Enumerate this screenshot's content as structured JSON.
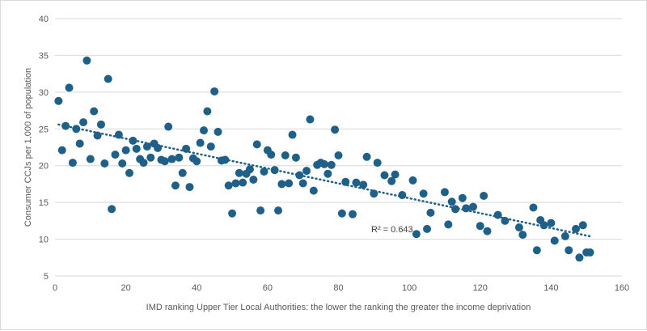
{
  "chart_data": {
    "type": "scatter",
    "title": "",
    "xlabel": "IMD ranking Upper Tier Local Authorities: the lower the ranking the greater the income deprivation",
    "ylabel": "Consumer CCJs per 1,000 of population",
    "xlim": [
      0,
      160
    ],
    "ylim": [
      5,
      40
    ],
    "xticks": [
      0,
      20,
      40,
      60,
      80,
      100,
      120,
      140,
      160
    ],
    "yticks": [
      5,
      10,
      15,
      20,
      25,
      30,
      35,
      40
    ],
    "grid": "horizontal",
    "legend": "none",
    "marker_color": "#1F6088",
    "trendline": {
      "type": "linear",
      "style": "dotted",
      "color": "#1F6088",
      "x_start": 1,
      "y_start": 25.6,
      "x_end": 151,
      "y_end": 10.4,
      "label": "R² = 0.643",
      "r_squared": 0.643
    },
    "points": [
      [
        1,
        28.8
      ],
      [
        2,
        22.1
      ],
      [
        3,
        25.4
      ],
      [
        4,
        30.6
      ],
      [
        5,
        20.4
      ],
      [
        6,
        25.0
      ],
      [
        7,
        23.0
      ],
      [
        8,
        25.9
      ],
      [
        9,
        34.3
      ],
      [
        10,
        20.9
      ],
      [
        11,
        27.4
      ],
      [
        12,
        24.1
      ],
      [
        13,
        25.6
      ],
      [
        14,
        20.3
      ],
      [
        15,
        31.8
      ],
      [
        16,
        14.1
      ],
      [
        17,
        21.5
      ],
      [
        18,
        24.2
      ],
      [
        19,
        20.3
      ],
      [
        20,
        22.1
      ],
      [
        21,
        19.0
      ],
      [
        22,
        23.4
      ],
      [
        23,
        22.3
      ],
      [
        24,
        20.9
      ],
      [
        25,
        20.4
      ],
      [
        26,
        22.6
      ],
      [
        27,
        21.1
      ],
      [
        28,
        23.0
      ],
      [
        29,
        22.4
      ],
      [
        30,
        20.8
      ],
      [
        31,
        20.6
      ],
      [
        32,
        25.3
      ],
      [
        33,
        20.9
      ],
      [
        34,
        17.3
      ],
      [
        35,
        21.1
      ],
      [
        36,
        19.0
      ],
      [
        37,
        22.3
      ],
      [
        38,
        17.1
      ],
      [
        39,
        21.0
      ],
      [
        40,
        20.6
      ],
      [
        41,
        23.1
      ],
      [
        42,
        24.8
      ],
      [
        43,
        27.4
      ],
      [
        44,
        22.6
      ],
      [
        45,
        30.1
      ],
      [
        46,
        24.6
      ],
      [
        47,
        20.7
      ],
      [
        48,
        20.8
      ],
      [
        49,
        17.3
      ],
      [
        50,
        13.5
      ],
      [
        51,
        17.6
      ],
      [
        52,
        19.0
      ],
      [
        53,
        17.7
      ],
      [
        54,
        18.9
      ],
      [
        55,
        19.5
      ],
      [
        56,
        18.1
      ],
      [
        57,
        22.9
      ],
      [
        58,
        13.9
      ],
      [
        59,
        19.2
      ],
      [
        60,
        22.1
      ],
      [
        61,
        21.5
      ],
      [
        62,
        19.4
      ],
      [
        63,
        13.9
      ],
      [
        64,
        17.5
      ],
      [
        65,
        21.4
      ],
      [
        66,
        17.6
      ],
      [
        67,
        24.2
      ],
      [
        68,
        21.1
      ],
      [
        69,
        18.7
      ],
      [
        70,
        17.6
      ],
      [
        71,
        19.3
      ],
      [
        72,
        26.3
      ],
      [
        73,
        16.6
      ],
      [
        74,
        20.1
      ],
      [
        75,
        20.4
      ],
      [
        76,
        20.2
      ],
      [
        77,
        18.9
      ],
      [
        78,
        20.1
      ],
      [
        79,
        24.9
      ],
      [
        80,
        21.4
      ],
      [
        81,
        13.5
      ],
      [
        82,
        17.8
      ],
      [
        84,
        13.4
      ],
      [
        85,
        17.7
      ],
      [
        87,
        17.4
      ],
      [
        88,
        21.2
      ],
      [
        90,
        16.2
      ],
      [
        91,
        20.4
      ],
      [
        93,
        18.7
      ],
      [
        95,
        17.9
      ],
      [
        96,
        18.8
      ],
      [
        98,
        16.0
      ],
      [
        101,
        18.0
      ],
      [
        102,
        10.7
      ],
      [
        104,
        16.2
      ],
      [
        105,
        11.4
      ],
      [
        106,
        13.6
      ],
      [
        110,
        16.4
      ],
      [
        111,
        12.0
      ],
      [
        112,
        15.1
      ],
      [
        113,
        14.1
      ],
      [
        115,
        15.6
      ],
      [
        116,
        14.2
      ],
      [
        118,
        14.4
      ],
      [
        120,
        11.8
      ],
      [
        121,
        15.9
      ],
      [
        122,
        11.1
      ],
      [
        125,
        13.3
      ],
      [
        127,
        12.5
      ],
      [
        131,
        11.6
      ],
      [
        132,
        10.6
      ],
      [
        135,
        14.3
      ],
      [
        136,
        8.5
      ],
      [
        137,
        12.6
      ],
      [
        138,
        11.9
      ],
      [
        140,
        12.2
      ],
      [
        141,
        9.8
      ],
      [
        144,
        10.4
      ],
      [
        145,
        8.5
      ],
      [
        147,
        11.4
      ],
      [
        148,
        7.5
      ],
      [
        149,
        11.9
      ],
      [
        150,
        8.2
      ],
      [
        151,
        8.2
      ]
    ]
  }
}
